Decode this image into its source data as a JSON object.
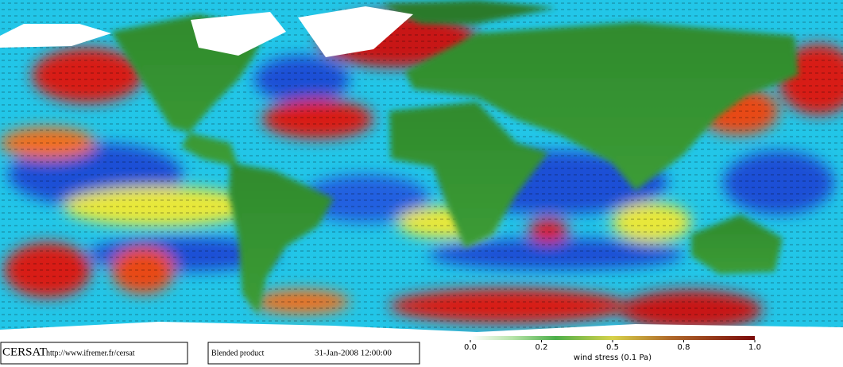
{
  "footer": {
    "logo": "CERSAT",
    "url": "http://www.ifremer.fr/cersat",
    "product": "Blended product",
    "timestamp": "31-Jan-2008 12:00:00"
  },
  "colorbar": {
    "label": "wind stress (0.1 Pa)",
    "ticks": [
      {
        "value": 0,
        "label": "0.0"
      },
      0.2,
      0.5,
      0.8,
      {
        "value": 1,
        "label": "1.0"
      }
    ]
  }
}
